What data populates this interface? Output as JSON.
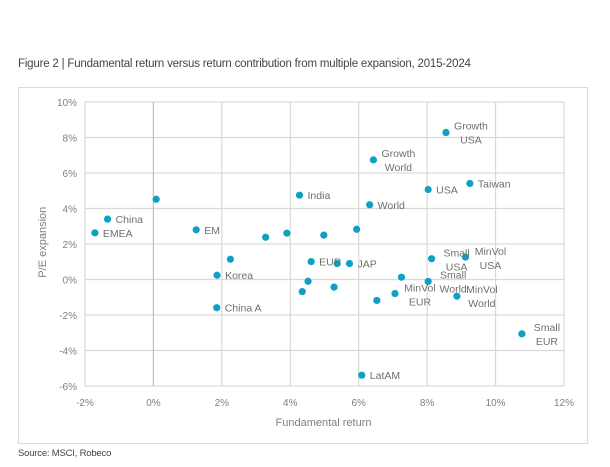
{
  "figure": {
    "title": "Figure 2 | Fundamental return versus return contribution from multiple expansion, 2015-2024",
    "source": "Source: MSCI, Robeco"
  },
  "chart_data": {
    "type": "scatter",
    "title": "Figure 2 | Fundamental return versus return contribution from multiple expansion, 2015-2024",
    "xlabel": "Fundamental return",
    "ylabel": "P/E expansion",
    "xlim": [
      -2,
      12
    ],
    "ylim": [
      -6,
      10
    ],
    "x_ticks": [
      -2,
      0,
      2,
      4,
      6,
      8,
      10,
      12
    ],
    "y_ticks": [
      -6,
      -4,
      -2,
      0,
      2,
      4,
      6,
      8,
      10
    ],
    "x_tick_labels": [
      "-2%",
      "0%",
      "2%",
      "4%",
      "6%",
      "8%",
      "10%",
      "12%"
    ],
    "y_tick_labels": [
      "-6%",
      "-4%",
      "-2%",
      "0%",
      "2%",
      "4%",
      "6%",
      "8%",
      "10%"
    ],
    "grid": true,
    "legend": "none",
    "marker_color": "#0fa0c3",
    "points": [
      {
        "label": [
          "Growth",
          "USA"
        ],
        "x": 8.55,
        "y": 8.28,
        "anchor": "above-right"
      },
      {
        "label": [
          "Growth",
          "World"
        ],
        "x": 6.43,
        "y": 6.74,
        "anchor": "above-right"
      },
      {
        "label": [
          "USA"
        ],
        "x": 8.03,
        "y": 5.07,
        "anchor": "right"
      },
      {
        "label": [
          "Taiwan"
        ],
        "x": 9.25,
        "y": 5.41,
        "anchor": "right"
      },
      {
        "label": [
          "India"
        ],
        "x": 4.27,
        "y": 4.75,
        "anchor": "right"
      },
      {
        "label": [
          "World"
        ],
        "x": 6.32,
        "y": 4.21,
        "anchor": "right"
      },
      {
        "label": [],
        "x": 0.08,
        "y": 4.52
      },
      {
        "label": [
          "China"
        ],
        "x": -1.34,
        "y": 3.4,
        "anchor": "right"
      },
      {
        "label": [
          "EMEA"
        ],
        "x": -1.71,
        "y": 2.63,
        "anchor": "right"
      },
      {
        "label": [
          "EM"
        ],
        "x": 1.25,
        "y": 2.8,
        "anchor": "right"
      },
      {
        "label": [],
        "x": 3.28,
        "y": 2.38
      },
      {
        "label": [],
        "x": 3.9,
        "y": 2.61
      },
      {
        "label": [],
        "x": 4.98,
        "y": 2.5
      },
      {
        "label": [],
        "x": 5.94,
        "y": 2.83
      },
      {
        "label": [],
        "x": 2.25,
        "y": 1.14
      },
      {
        "label": [
          "Korea"
        ],
        "x": 1.86,
        "y": 0.24,
        "anchor": "right"
      },
      {
        "label": [
          "China A"
        ],
        "x": 1.85,
        "y": -1.59,
        "anchor": "right"
      },
      {
        "label": [
          "EUR"
        ],
        "x": 4.61,
        "y": 1.01,
        "anchor": "right"
      },
      {
        "label": [],
        "x": 5.37,
        "y": 0.9
      },
      {
        "label": [
          "JAP"
        ],
        "x": 5.73,
        "y": 0.9,
        "anchor": "right"
      },
      {
        "label": [],
        "x": 4.52,
        "y": -0.1
      },
      {
        "label": [],
        "x": 4.35,
        "y": -0.68
      },
      {
        "label": [],
        "x": 5.28,
        "y": -0.43
      },
      {
        "label": [],
        "x": 6.53,
        "y": -1.18
      },
      {
        "label": [
          "Small",
          "USA"
        ],
        "x": 8.13,
        "y": 1.17,
        "anchor": "right2"
      },
      {
        "label": [
          "MinVol",
          "USA"
        ],
        "x": 9.12,
        "y": 1.26,
        "anchor": "right2"
      },
      {
        "label": [],
        "x": 7.25,
        "y": 0.13
      },
      {
        "label": [
          "Small",
          "World"
        ],
        "x": 8.03,
        "y": -0.11,
        "anchor": "above-right"
      },
      {
        "label": [
          "MinVol",
          "EUR"
        ],
        "x": 7.06,
        "y": -0.79,
        "anchor": "right2"
      },
      {
        "label": [
          "MinVol",
          "World"
        ],
        "x": 8.87,
        "y": -0.94,
        "anchor": "above-right"
      },
      {
        "label": [
          "Small",
          "EUR"
        ],
        "x": 10.77,
        "y": -3.06,
        "anchor": "above-right"
      },
      {
        "label": [
          "LatAM"
        ],
        "x": 6.09,
        "y": -5.39,
        "anchor": "right"
      }
    ]
  }
}
